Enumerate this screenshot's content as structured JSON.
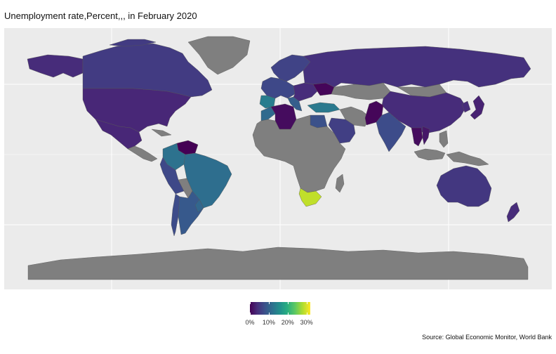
{
  "title": "Unemployment rate,Percent,,, in February 2020",
  "caption": "Source: Global Economic Monitor, World Bank",
  "legend": {
    "min": 0,
    "max": 32,
    "ticks": [
      {
        "value": 0,
        "label": "0%"
      },
      {
        "value": 10,
        "label": "10%"
      },
      {
        "value": 20,
        "label": "20%"
      },
      {
        "value": 30,
        "label": "30%"
      }
    ],
    "palette": "viridis"
  },
  "colors": {
    "panel": "#ebebeb",
    "no_data": "#7f7f7f",
    "grid": "#ffffff"
  },
  "regions": [
    {
      "name": "Canada",
      "value": 5.6
    },
    {
      "name": "Alaska",
      "value": 4.0
    },
    {
      "name": "United States",
      "value": 3.5
    },
    {
      "name": "Mexico",
      "value": 3.5
    },
    {
      "name": "Greenland",
      "value": null
    },
    {
      "name": "Colombia",
      "value": 12.0
    },
    {
      "name": "Venezuela",
      "value": 0.0
    },
    {
      "name": "Brazil",
      "value": 11.5
    },
    {
      "name": "Peru",
      "value": 7.0
    },
    {
      "name": "Bolivia",
      "value": null
    },
    {
      "name": "Argentina",
      "value": 9.0
    },
    {
      "name": "Chile",
      "value": 7.5
    },
    {
      "name": "Uruguay",
      "value": 10.5
    },
    {
      "name": "Scandinavia",
      "value": 6.5
    },
    {
      "name": "Western Europe",
      "value": 7.0
    },
    {
      "name": "Spain",
      "value": 13.5
    },
    {
      "name": "Italy",
      "value": 9.5
    },
    {
      "name": "Eastern Europe",
      "value": 4.0
    },
    {
      "name": "Ukraine",
      "value": 0.5
    },
    {
      "name": "Russia",
      "value": 4.5
    },
    {
      "name": "Kazakhstan",
      "value": null
    },
    {
      "name": "Turkey",
      "value": 13.0
    },
    {
      "name": "Morocco",
      "value": 11.0
    },
    {
      "name": "Algeria",
      "value": 1.0
    },
    {
      "name": "Egypt",
      "value": 8.0
    },
    {
      "name": "Saudi Arabia",
      "value": 6.0
    },
    {
      "name": "Iran",
      "value": null
    },
    {
      "name": "Pakistan",
      "value": 0.5
    },
    {
      "name": "India",
      "value": 7.5
    },
    {
      "name": "China",
      "value": 4.0
    },
    {
      "name": "Mongolia",
      "value": null
    },
    {
      "name": "Japan",
      "value": 3.0
    },
    {
      "name": "Korea",
      "value": 4.0
    },
    {
      "name": "Thailand",
      "value": 1.0
    },
    {
      "name": "Vietnam",
      "value": 2.0
    },
    {
      "name": "Southeast Asia Islands",
      "value": null
    },
    {
      "name": "Sub-Saharan Africa",
      "value": null
    },
    {
      "name": "South Africa",
      "value": 29.0
    },
    {
      "name": "Madagascar",
      "value": null
    },
    {
      "name": "Australia",
      "value": 5.2
    },
    {
      "name": "New Zealand",
      "value": 4.0
    },
    {
      "name": "Antarctica",
      "value": null
    }
  ]
}
